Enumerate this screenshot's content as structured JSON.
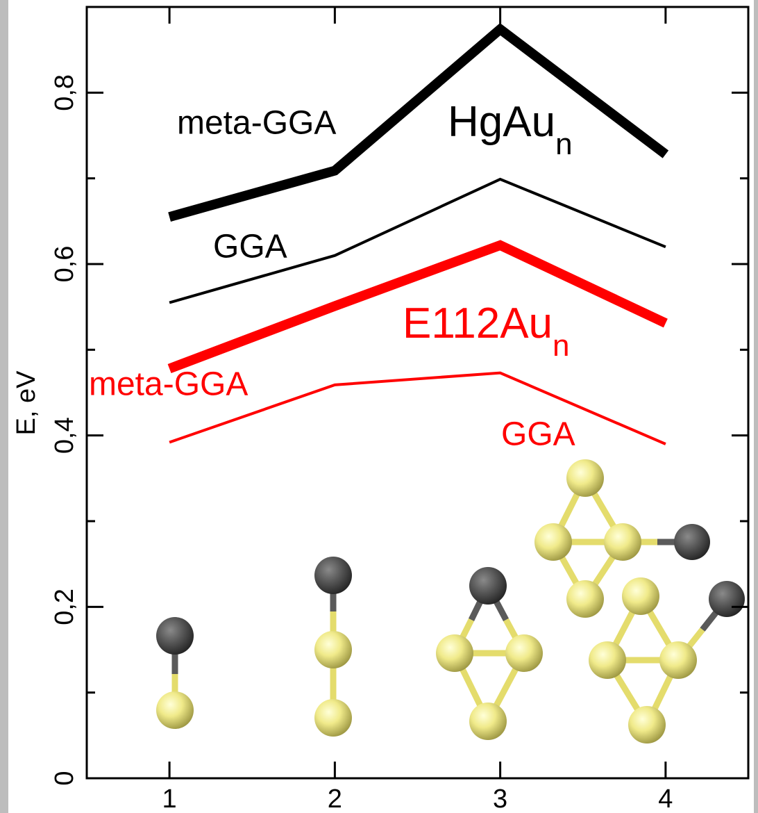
{
  "chart_data": {
    "type": "line",
    "y_label": "E, eV",
    "x": [
      1,
      2,
      3,
      4
    ],
    "xlim": [
      0.5,
      4.5
    ],
    "xticks": [
      1,
      2,
      3,
      4
    ],
    "ylim": [
      0,
      0.9
    ],
    "yticks": [
      0,
      {
        "value": 0.2,
        "label": "0,2"
      },
      {
        "value": 0.4,
        "label": "0,4"
      },
      {
        "value": 0.6,
        "label": "0,6"
      },
      {
        "value": 0.8,
        "label": "0,8"
      }
    ],
    "yminor": [
      0.1,
      0.3,
      0.5,
      0.7
    ],
    "series": [
      {
        "name": "meta-GGA",
        "color": "#000000",
        "width": 14,
        "values": [
          0.655,
          0.709,
          0.874,
          0.728
        ]
      },
      {
        "name": "GGA",
        "color": "#000000",
        "width": 4,
        "values": [
          0.555,
          0.61,
          0.699,
          0.62
        ]
      },
      {
        "name": "meta-GGA",
        "color": "#ff0000",
        "width": 14,
        "values": [
          0.478,
          0.551,
          0.622,
          0.531
        ]
      },
      {
        "name": "GGA",
        "color": "#ff0000",
        "width": 4,
        "values": [
          0.392,
          0.459,
          0.473,
          0.39
        ]
      }
    ],
    "annotations": [
      {
        "text": "HgAu",
        "subscript": "n",
        "color": "#000000"
      },
      {
        "text": "E112Au",
        "subscript": "n",
        "color": "#ff0000"
      }
    ]
  }
}
